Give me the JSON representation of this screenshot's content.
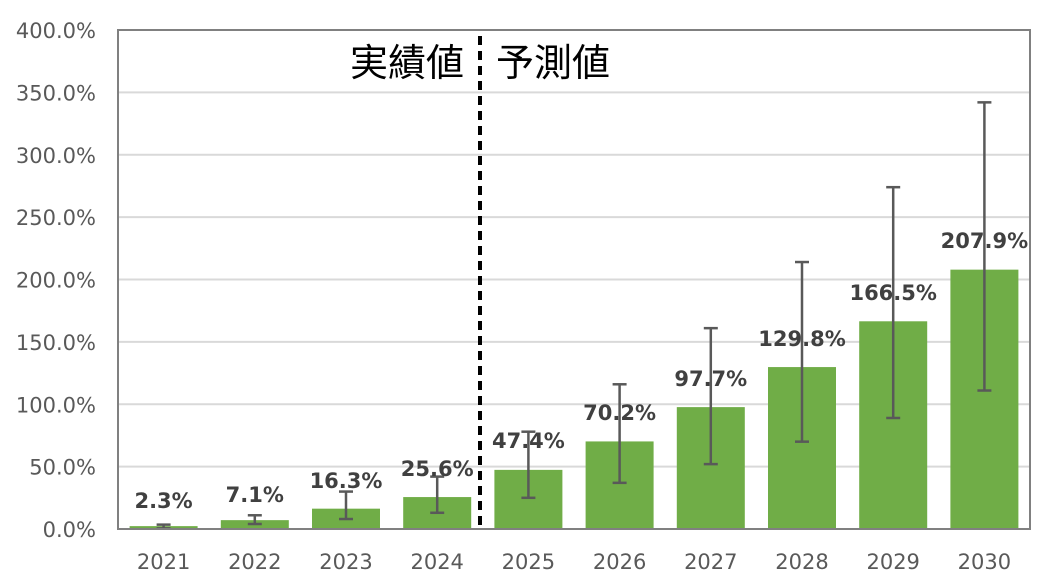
{
  "chart_data": {
    "type": "bar",
    "title": "",
    "xlabel": "",
    "ylabel": "",
    "categories": [
      "2021",
      "2022",
      "2023",
      "2024",
      "2025",
      "2026",
      "2027",
      "2028",
      "2029",
      "2030"
    ],
    "values": [
      2.3,
      7.1,
      16.3,
      25.6,
      47.4,
      70.2,
      97.7,
      129.8,
      166.5,
      207.9
    ],
    "data_labels": [
      "2.3%",
      "7.1%",
      "16.3%",
      "25.6%",
      "47.4%",
      "70.2%",
      "97.7%",
      "129.8%",
      "166.5%",
      "207.9%"
    ],
    "error_bars": {
      "lower": [
        0.5,
        4,
        8,
        13,
        25,
        37,
        52,
        70,
        89,
        111
      ],
      "upper": [
        3.5,
        11,
        30,
        42,
        78,
        116,
        161,
        214,
        274,
        342
      ]
    },
    "ylim": [
      0,
      400
    ],
    "yticks": [
      0,
      50,
      100,
      150,
      200,
      250,
      300,
      350,
      400
    ],
    "ytick_labels": [
      "0.0%",
      "50.0%",
      "100.0%",
      "150.0%",
      "200.0%",
      "250.0%",
      "300.0%",
      "350.0%",
      "400.0%"
    ],
    "grid": true,
    "legend": null,
    "bar_color": "#70AD47",
    "annotations": [
      {
        "text": "実績値",
        "position": "left of divider",
        "note": "actual values (2021-2024)"
      },
      {
        "text": "予測値",
        "position": "right of divider",
        "note": "forecast values (2025-2030)"
      }
    ],
    "divider": {
      "between": [
        "2024",
        "2025"
      ],
      "style": "dashed",
      "color": "#000000"
    }
  },
  "annotations": {
    "actual_label": "実績値",
    "forecast_label": "予測値"
  }
}
